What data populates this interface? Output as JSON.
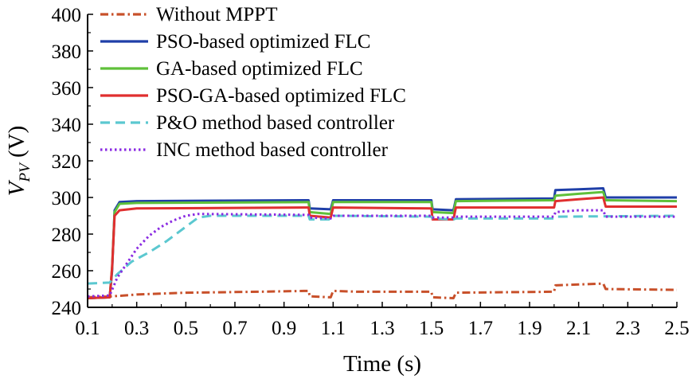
{
  "chart_data": {
    "type": "line",
    "xlabel": "Time (s)",
    "ylabel_main": "V",
    "ylabel_sub": "PV",
    "ylabel_unit": " (V)",
    "xlim": [
      0.1,
      2.5
    ],
    "ylim": [
      240,
      400
    ],
    "x_ticks": [
      "0.1",
      "0.3",
      "0.5",
      "0.7",
      "0.9",
      "1.1",
      "1.3",
      "1.5",
      "1.7",
      "1.9",
      "2.1",
      "2.3",
      "2.5"
    ],
    "y_ticks": [
      "240",
      "260",
      "280",
      "300",
      "320",
      "340",
      "360",
      "380",
      "400"
    ],
    "grid": false,
    "legend_position": "top-center",
    "series": [
      {
        "name": "Without MPPT",
        "color": "#c8502a",
        "dash": "dashdot",
        "points": [
          [
            0.1,
            245.5
          ],
          [
            0.2,
            246
          ],
          [
            0.3,
            247
          ],
          [
            0.5,
            248
          ],
          [
            0.8,
            248.5
          ],
          [
            1.0,
            249
          ],
          [
            1.005,
            246
          ],
          [
            1.09,
            245.5
          ],
          [
            1.1,
            249
          ],
          [
            1.2,
            248.5
          ],
          [
            1.5,
            248.5
          ],
          [
            1.505,
            245.5
          ],
          [
            1.59,
            245
          ],
          [
            1.6,
            248
          ],
          [
            2.0,
            248.5
          ],
          [
            2.005,
            252
          ],
          [
            2.1,
            252.5
          ],
          [
            2.2,
            253
          ],
          [
            2.21,
            250
          ],
          [
            2.5,
            249.5
          ]
        ]
      },
      {
        "name": "PSO-based optimized FLC",
        "color": "#1f3fa8",
        "dash": "solid",
        "points": [
          [
            0.1,
            245
          ],
          [
            0.19,
            245.5
          ],
          [
            0.2,
            260
          ],
          [
            0.21,
            293
          ],
          [
            0.23,
            297.5
          ],
          [
            0.3,
            298
          ],
          [
            1.0,
            298.5
          ],
          [
            1.005,
            294
          ],
          [
            1.09,
            293.5
          ],
          [
            1.1,
            298.5
          ],
          [
            1.5,
            298.5
          ],
          [
            1.505,
            293.5
          ],
          [
            1.59,
            293
          ],
          [
            1.6,
            299
          ],
          [
            2.0,
            299.5
          ],
          [
            2.005,
            304
          ],
          [
            2.1,
            304.5
          ],
          [
            2.2,
            305
          ],
          [
            2.21,
            300
          ],
          [
            2.5,
            300
          ]
        ]
      },
      {
        "name": "GA-based optimized FLC",
        "color": "#5fc03a",
        "dash": "solid",
        "points": [
          [
            0.1,
            245
          ],
          [
            0.19,
            245.5
          ],
          [
            0.2,
            262
          ],
          [
            0.21,
            292
          ],
          [
            0.23,
            296.5
          ],
          [
            0.3,
            297
          ],
          [
            1.0,
            297.5
          ],
          [
            1.005,
            292
          ],
          [
            1.09,
            291
          ],
          [
            1.1,
            297.5
          ],
          [
            1.5,
            297.5
          ],
          [
            1.505,
            292
          ],
          [
            1.59,
            291.5
          ],
          [
            1.6,
            298
          ],
          [
            2.0,
            298.5
          ],
          [
            2.005,
            301
          ],
          [
            2.1,
            302
          ],
          [
            2.2,
            303
          ],
          [
            2.21,
            298.5
          ],
          [
            2.5,
            298
          ]
        ]
      },
      {
        "name": "PSO-GA-based optimized FLC",
        "color": "#e02f2f",
        "dash": "solid",
        "points": [
          [
            0.1,
            245
          ],
          [
            0.19,
            245.5
          ],
          [
            0.2,
            262
          ],
          [
            0.21,
            290
          ],
          [
            0.23,
            293
          ],
          [
            0.3,
            294
          ],
          [
            1.0,
            294.5
          ],
          [
            1.005,
            290
          ],
          [
            1.09,
            289
          ],
          [
            1.1,
            294.5
          ],
          [
            1.5,
            294
          ],
          [
            1.505,
            288
          ],
          [
            1.59,
            288
          ],
          [
            1.6,
            294.5
          ],
          [
            2.0,
            294.5
          ],
          [
            2.005,
            298
          ],
          [
            2.1,
            299
          ],
          [
            2.2,
            300
          ],
          [
            2.21,
            295
          ],
          [
            2.5,
            295
          ]
        ]
      },
      {
        "name": "P&O method based controller",
        "color": "#5bc8d0",
        "dash": "dashed",
        "points": [
          [
            0.1,
            253
          ],
          [
            0.19,
            253.5
          ],
          [
            0.22,
            258
          ],
          [
            0.28,
            265
          ],
          [
            0.35,
            270
          ],
          [
            0.42,
            276
          ],
          [
            0.5,
            284
          ],
          [
            0.55,
            289
          ],
          [
            0.6,
            290
          ],
          [
            1.0,
            290
          ],
          [
            1.005,
            288
          ],
          [
            1.09,
            288
          ],
          [
            1.1,
            290
          ],
          [
            1.5,
            289.5
          ],
          [
            1.505,
            288.5
          ],
          [
            1.59,
            288
          ],
          [
            1.6,
            288.5
          ],
          [
            2.0,
            288.5
          ],
          [
            2.005,
            289.5
          ],
          [
            2.5,
            290
          ]
        ]
      },
      {
        "name": "INC method based controller",
        "color": "#8a2be2",
        "dash": "dotted",
        "points": [
          [
            0.1,
            246
          ],
          [
            0.19,
            246.5
          ],
          [
            0.22,
            256
          ],
          [
            0.26,
            264
          ],
          [
            0.3,
            272
          ],
          [
            0.35,
            279
          ],
          [
            0.4,
            284
          ],
          [
            0.45,
            287.5
          ],
          [
            0.5,
            290
          ],
          [
            0.55,
            291
          ],
          [
            1.0,
            290.5
          ],
          [
            1.005,
            289
          ],
          [
            1.09,
            288.5
          ],
          [
            1.1,
            290
          ],
          [
            1.5,
            290
          ],
          [
            1.505,
            289
          ],
          [
            1.59,
            289
          ],
          [
            1.6,
            289.5
          ],
          [
            2.0,
            289.5
          ],
          [
            2.005,
            292
          ],
          [
            2.1,
            293
          ],
          [
            2.2,
            293
          ],
          [
            2.21,
            289.5
          ],
          [
            2.5,
            289.5
          ]
        ]
      }
    ]
  }
}
